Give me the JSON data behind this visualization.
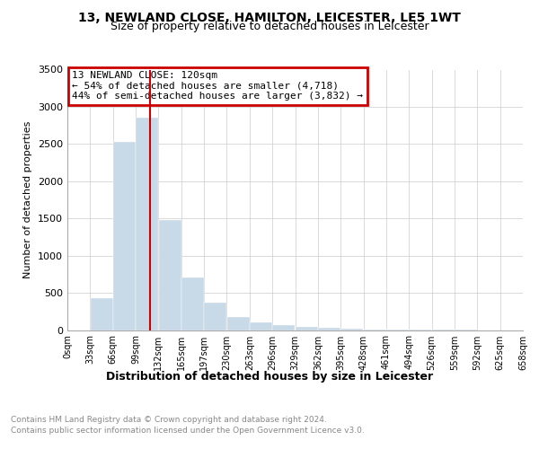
{
  "title_line1": "13, NEWLAND CLOSE, HAMILTON, LEICESTER, LE5 1WT",
  "title_line2": "Size of property relative to detached houses in Leicester",
  "xlabel": "Distribution of detached houses by size in Leicester",
  "ylabel": "Number of detached properties",
  "annotation_title": "13 NEWLAND CLOSE: 120sqm",
  "annotation_line1": "← 54% of detached houses are smaller (4,718)",
  "annotation_line2": "44% of semi-detached houses are larger (3,832) →",
  "footnote1": "Contains HM Land Registry data © Crown copyright and database right 2024.",
  "footnote2": "Contains public sector information licensed under the Open Government Licence v3.0.",
  "bin_edges": [
    0,
    33,
    66,
    99,
    132,
    165,
    198,
    231,
    264,
    297,
    330,
    363,
    396,
    429,
    462,
    495,
    528,
    561,
    594,
    627,
    660
  ],
  "bin_counts": [
    0,
    430,
    2530,
    2850,
    1480,
    710,
    370,
    175,
    100,
    65,
    40,
    25,
    15,
    10,
    5,
    3,
    2,
    1,
    0,
    0
  ],
  "tick_labels": [
    "0sqm",
    "33sqm",
    "66sqm",
    "99sqm",
    "132sqm",
    "165sqm",
    "197sqm",
    "230sqm",
    "263sqm",
    "296sqm",
    "329sqm",
    "362sqm",
    "395sqm",
    "428sqm",
    "461sqm",
    "494sqm",
    "526sqm",
    "559sqm",
    "592sqm",
    "625sqm",
    "658sqm"
  ],
  "bar_color": "#c8d9e8",
  "vline_color": "#cc0000",
  "vline_x": 120,
  "annotation_box_edgecolor": "#cc0000",
  "ylim": [
    0,
    3500
  ],
  "yticks": [
    0,
    500,
    1000,
    1500,
    2000,
    2500,
    3000,
    3500
  ],
  "grid_color": "#cccccc"
}
